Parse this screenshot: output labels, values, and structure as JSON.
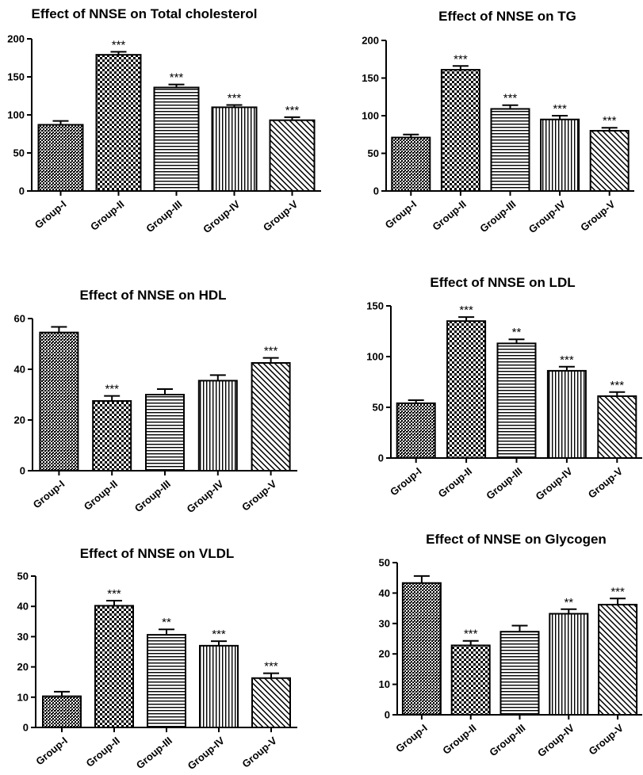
{
  "chart_data": [
    {
      "type": "bar",
      "title": "Effect of NNSE on Total cholesterol",
      "categories": [
        "Group-I",
        "Group-II",
        "Group-III",
        "Group-IV",
        "Group-V"
      ],
      "values": [
        87,
        179,
        136,
        110,
        93
      ],
      "errors": [
        5,
        4,
        4,
        3,
        4
      ],
      "significance": [
        "",
        "***",
        "***",
        "***",
        "***"
      ],
      "ylim": [
        0,
        200
      ],
      "yticks": [
        0,
        50,
        100,
        150,
        200
      ],
      "bar_patterns": [
        "fine-hatch",
        "checker",
        "horizontal",
        "vertical",
        "diagonal"
      ],
      "colors": {
        "bar_fill": "#ffffff",
        "pattern": "#000000"
      }
    },
    {
      "type": "bar",
      "title": "Effect of NNSE on TG",
      "categories": [
        "Group-I",
        "Group-II",
        "Group-III",
        "Group-IV",
        "Group-V"
      ],
      "values": [
        71,
        161,
        109,
        95,
        80
      ],
      "errors": [
        4,
        5,
        5,
        5,
        4
      ],
      "significance": [
        "",
        "***",
        "***",
        "***",
        "***"
      ],
      "ylim": [
        0,
        200
      ],
      "yticks": [
        0,
        50,
        100,
        150,
        200
      ],
      "bar_patterns": [
        "fine-hatch",
        "checker",
        "horizontal",
        "vertical",
        "diagonal"
      ],
      "colors": {
        "bar_fill": "#ffffff",
        "pattern": "#000000"
      }
    },
    {
      "type": "bar",
      "title": "Effect of NNSE on HDL",
      "categories": [
        "Group-I",
        "Group-II",
        "Group-III",
        "Group-IV",
        "Group-V"
      ],
      "values": [
        54.5,
        27.5,
        30,
        35.5,
        42.5
      ],
      "errors": [
        2.2,
        2,
        2.2,
        2.2,
        2
      ],
      "significance": [
        "",
        "***",
        "",
        "",
        "***"
      ],
      "ylim": [
        0,
        60
      ],
      "yticks": [
        0,
        20,
        40,
        60
      ],
      "bar_patterns": [
        "fine-hatch",
        "checker",
        "horizontal",
        "vertical",
        "diagonal"
      ],
      "colors": {
        "bar_fill": "#ffffff",
        "pattern": "#000000"
      }
    },
    {
      "type": "bar",
      "title": "Effect of NNSE on LDL",
      "categories": [
        "Group-I",
        "Group-II",
        "Group-III",
        "Group-IV",
        "Group-V"
      ],
      "values": [
        54,
        135,
        113,
        86,
        61
      ],
      "errors": [
        3,
        4,
        4,
        4,
        4
      ],
      "significance": [
        "",
        "***",
        "**",
        "***",
        "***"
      ],
      "ylim": [
        0,
        150
      ],
      "yticks": [
        0,
        50,
        100,
        150
      ],
      "bar_patterns": [
        "fine-hatch",
        "checker",
        "horizontal",
        "vertical",
        "diagonal"
      ],
      "colors": {
        "bar_fill": "#ffffff",
        "pattern": "#000000"
      }
    },
    {
      "type": "bar",
      "title": "Effect of NNSE on VLDL",
      "categories": [
        "Group-I",
        "Group-II",
        "Group-III",
        "Group-IV",
        "Group-V"
      ],
      "values": [
        10.3,
        40.2,
        30.6,
        27,
        16.3
      ],
      "errors": [
        1.5,
        1.7,
        1.8,
        1.5,
        1.6
      ],
      "significance": [
        "",
        "***",
        "**",
        "***",
        "***"
      ],
      "ylim": [
        0,
        50
      ],
      "yticks": [
        0,
        10,
        20,
        30,
        40,
        50
      ],
      "bar_patterns": [
        "fine-hatch",
        "checker",
        "horizontal",
        "vertical",
        "diagonal"
      ],
      "colors": {
        "bar_fill": "#ffffff",
        "pattern": "#000000"
      }
    },
    {
      "type": "bar",
      "title": "Effect of NNSE on Glycogen",
      "categories": [
        "Group-I",
        "Group-II",
        "Group-III",
        "Group-IV",
        "Group-V"
      ],
      "values": [
        43.3,
        22.8,
        27.3,
        33.2,
        36.2
      ],
      "errors": [
        2.3,
        1.5,
        2,
        1.5,
        2
      ],
      "significance": [
        "",
        "***",
        "",
        "**",
        "***"
      ],
      "ylim": [
        0,
        50
      ],
      "yticks": [
        0,
        10,
        20,
        30,
        40,
        50
      ],
      "bar_patterns": [
        "fine-hatch",
        "checker",
        "horizontal",
        "vertical",
        "diagonal"
      ],
      "colors": {
        "bar_fill": "#ffffff",
        "pattern": "#000000"
      }
    }
  ]
}
